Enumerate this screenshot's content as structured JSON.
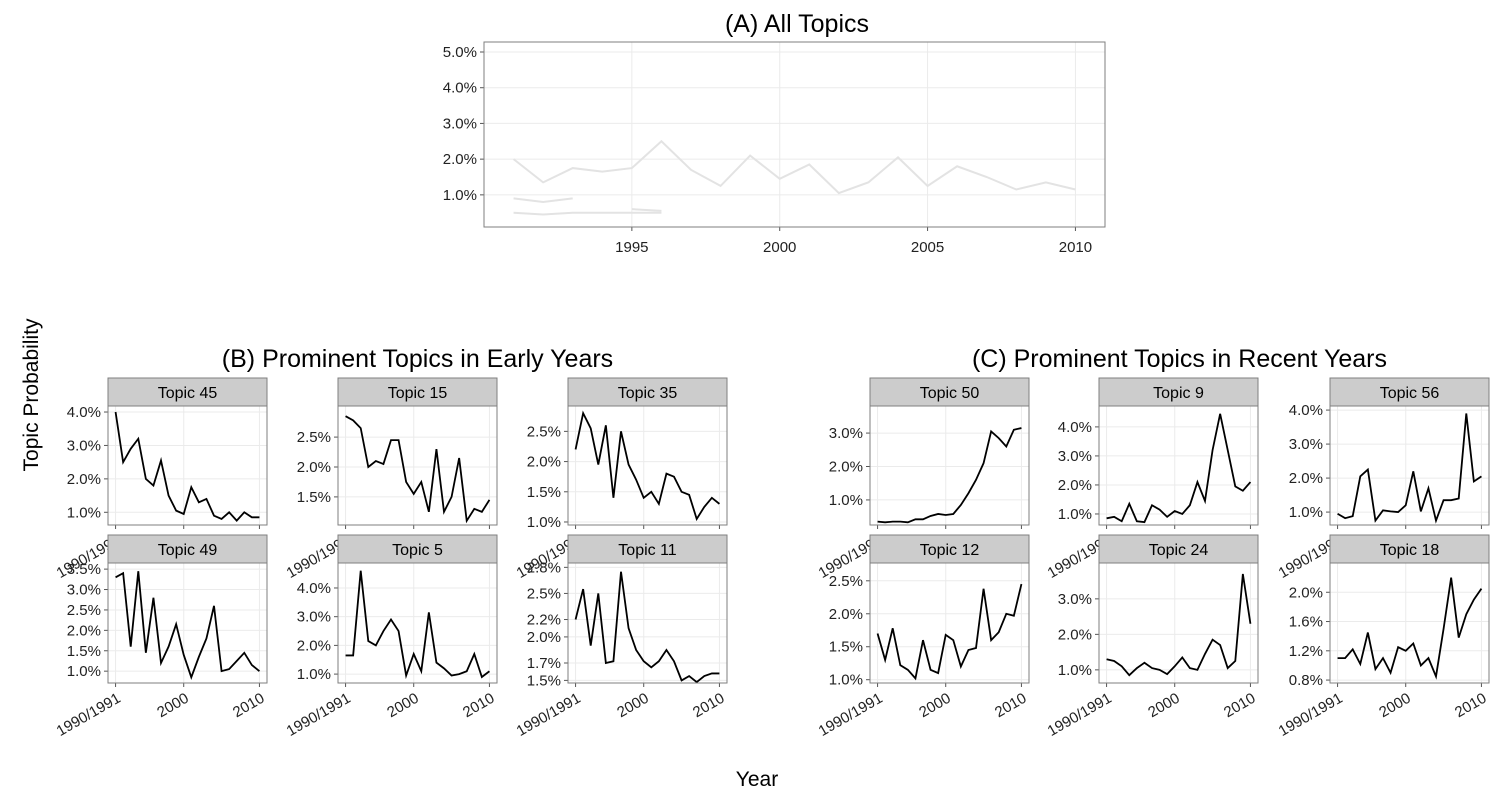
{
  "ylabel": "Topic Probability",
  "xlabel": "Year",
  "chart_data": [
    {
      "type": "line",
      "title": "(A) All Topics",
      "x": [
        1991,
        1992,
        1993,
        1994,
        1995,
        1996,
        1997,
        1998,
        1999,
        2000,
        2001,
        2002,
        2003,
        2004,
        2005,
        2006,
        2007,
        2008,
        2009,
        2010
      ],
      "xlim": [
        1990,
        2011
      ],
      "xticks": [
        1995,
        2000,
        2005,
        2010
      ],
      "ylim": [
        0.1,
        5.28
      ],
      "yticks": [
        {
          "value": 1,
          "label": "1.0%"
        },
        {
          "value": 2,
          "label": "2.0%"
        },
        {
          "value": 3,
          "label": "3.0%"
        },
        {
          "value": 4,
          "label": "4.0%"
        },
        {
          "value": 5,
          "label": "5.0%"
        }
      ],
      "grid": true,
      "series": [
        {
          "color": "#e3e3e3",
          "values": [
            2.0,
            1.35,
            1.75,
            1.65,
            1.75,
            2.5,
            1.7,
            1.25,
            2.1,
            1.45,
            1.85,
            1.05,
            1.35,
            2.05,
            1.25,
            1.8,
            1.5,
            1.15,
            1.35,
            1.15
          ]
        },
        {
          "color": "#e3e3e3",
          "values": [
            0.9,
            0.8,
            0.9,
            null,
            0.6,
            0.55,
            null,
            null,
            null,
            null,
            null,
            null,
            null,
            0.75,
            null,
            null,
            null,
            null,
            null,
            null
          ]
        },
        {
          "color": "#e3e3e3",
          "values": [
            0.5,
            0.45,
            0.5,
            0.5,
            0.5,
            0.5,
            null,
            null,
            null,
            null,
            null,
            null,
            null,
            null,
            null,
            null,
            null,
            null,
            null,
            null
          ]
        }
      ]
    },
    {
      "type": "line",
      "title": "(B) Prominent Topics in Early Years",
      "x": [
        1991,
        1992,
        1993,
        1994,
        1995,
        1996,
        1997,
        1998,
        1999,
        2000,
        2001,
        2002,
        2003,
        2004,
        2005,
        2006,
        2007,
        2008,
        2009,
        2010
      ],
      "xlim": [
        1990,
        2011
      ],
      "xticks": [
        {
          "value": 1991,
          "label": "1990/1991"
        },
        2000,
        2010
      ],
      "color": "#000000",
      "grid": true,
      "facets": [
        {
          "title": "Topic 45",
          "ylim": [
            0.62,
            4.18
          ],
          "yticks": [
            {
              "value": 1,
              "label": "1.0%"
            },
            {
              "value": 2,
              "label": "2.0%"
            },
            {
              "value": 3,
              "label": "3.0%"
            },
            {
              "value": 4,
              "label": "4.0%"
            }
          ],
          "values": [
            4.0,
            2.5,
            2.9,
            3.2,
            2.0,
            1.8,
            2.55,
            1.5,
            1.05,
            0.95,
            1.75,
            1.3,
            1.4,
            0.9,
            0.8,
            1.0,
            0.75,
            1.0,
            0.85,
            0.85
          ]
        },
        {
          "title": "Topic 15",
          "ylim": [
            1.03,
            3.02
          ],
          "yticks": [
            {
              "value": 1.5,
              "label": "1.5%"
            },
            {
              "value": 2,
              "label": "2.0%"
            },
            {
              "value": 2.5,
              "label": "2.5%"
            }
          ],
          "values": [
            2.85,
            2.78,
            2.65,
            2.0,
            2.1,
            2.05,
            2.45,
            2.45,
            1.75,
            1.55,
            1.75,
            1.25,
            2.3,
            1.25,
            1.5,
            2.15,
            1.1,
            1.3,
            1.25,
            1.45
          ]
        },
        {
          "title": "Topic 35",
          "ylim": [
            0.95,
            2.92
          ],
          "yticks": [
            {
              "value": 1,
              "label": "1.0%"
            },
            {
              "value": 1.5,
              "label": "1.5%"
            },
            {
              "value": 2,
              "label": "2.0%"
            },
            {
              "value": 2.5,
              "label": "2.5%"
            }
          ],
          "values": [
            2.2,
            2.8,
            2.55,
            1.95,
            2.6,
            1.4,
            2.5,
            1.95,
            1.7,
            1.4,
            1.5,
            1.3,
            1.8,
            1.75,
            1.5,
            1.45,
            1.05,
            1.25,
            1.4,
            1.3
          ]
        },
        {
          "title": "Topic 49",
          "ylim": [
            0.71,
            3.65
          ],
          "yticks": [
            {
              "value": 1,
              "label": "1.0%"
            },
            {
              "value": 1.5,
              "label": "1.5%"
            },
            {
              "value": 2,
              "label": "2.0%"
            },
            {
              "value": 2.5,
              "label": "2.5%"
            },
            {
              "value": 3,
              "label": "3.0%"
            },
            {
              "value": 3.5,
              "label": "3.5%"
            }
          ],
          "values": [
            3.3,
            3.4,
            1.6,
            3.45,
            1.45,
            2.8,
            1.2,
            1.6,
            2.15,
            1.4,
            0.85,
            1.35,
            1.8,
            2.6,
            1.0,
            1.05,
            1.25,
            1.45,
            1.15,
            1.0
          ]
        },
        {
          "title": "Topic 5",
          "ylim": [
            0.69,
            4.87
          ],
          "yticks": [
            {
              "value": 1,
              "label": "1.0%"
            },
            {
              "value": 2,
              "label": "2.0%"
            },
            {
              "value": 3,
              "label": "3.0%"
            },
            {
              "value": 4,
              "label": "4.0%"
            }
          ],
          "values": [
            1.65,
            1.65,
            4.6,
            2.15,
            2.0,
            2.5,
            2.9,
            2.5,
            0.95,
            1.7,
            1.1,
            3.15,
            1.4,
            1.2,
            0.95,
            1.0,
            1.1,
            1.7,
            0.9,
            1.1
          ]
        },
        {
          "title": "Topic 11",
          "ylim": [
            1.47,
            2.85
          ],
          "yticks": [
            {
              "value": 1.5,
              "label": "1.5%"
            },
            {
              "value": 1.7,
              "label": "1.7%"
            },
            {
              "value": 2,
              "label": "2.0%"
            },
            {
              "value": 2.2,
              "label": "2.2%"
            },
            {
              "value": 2.5,
              "label": "2.5%"
            },
            {
              "value": 2.8,
              "label": "2.8%"
            }
          ],
          "values": [
            2.2,
            2.55,
            1.9,
            2.5,
            1.7,
            1.72,
            2.75,
            2.1,
            1.85,
            1.72,
            1.65,
            1.72,
            1.85,
            1.72,
            1.5,
            1.55,
            1.48,
            1.55,
            1.58,
            1.58
          ]
        }
      ]
    },
    {
      "type": "line",
      "title": "(C) Prominent Topics in Recent Years",
      "x": [
        1991,
        1992,
        1993,
        1994,
        1995,
        1996,
        1997,
        1998,
        1999,
        2000,
        2001,
        2002,
        2003,
        2004,
        2005,
        2006,
        2007,
        2008,
        2009,
        2010
      ],
      "xlim": [
        1990,
        2011
      ],
      "xticks": [
        {
          "value": 1991,
          "label": "1990/1991"
        },
        2000,
        2010
      ],
      "color": "#000000",
      "grid": true,
      "facets": [
        {
          "title": "Topic 50",
          "ylim": [
            0.25,
            3.81
          ],
          "yticks": [
            {
              "value": 1,
              "label": "1.0%"
            },
            {
              "value": 2,
              "label": "2.0%"
            },
            {
              "value": 3,
              "label": "3.0%"
            }
          ],
          "values": [
            0.35,
            0.33,
            0.35,
            0.35,
            0.33,
            0.42,
            0.42,
            0.52,
            0.58,
            0.55,
            0.58,
            0.85,
            1.2,
            1.6,
            2.1,
            3.05,
            2.85,
            2.6,
            3.1,
            3.15
          ]
        },
        {
          "title": "Topic 9",
          "ylim": [
            0.62,
            4.72
          ],
          "yticks": [
            {
              "value": 1,
              "label": "1.0%"
            },
            {
              "value": 2,
              "label": "2.0%"
            },
            {
              "value": 3,
              "label": "3.0%"
            },
            {
              "value": 4,
              "label": "4.0%"
            }
          ],
          "values": [
            0.85,
            0.9,
            0.75,
            1.35,
            0.75,
            0.72,
            1.3,
            1.15,
            0.9,
            1.1,
            1.0,
            1.3,
            2.1,
            1.45,
            3.2,
            4.45,
            3.2,
            1.95,
            1.8,
            2.1
          ]
        },
        {
          "title": "Topic 56",
          "ylim": [
            0.62,
            4.12
          ],
          "yticks": [
            {
              "value": 1,
              "label": "1.0%"
            },
            {
              "value": 2,
              "label": "2.0%"
            },
            {
              "value": 3,
              "label": "3.0%"
            },
            {
              "value": 4,
              "label": "4.0%"
            }
          ],
          "values": [
            0.95,
            0.82,
            0.88,
            2.05,
            2.25,
            0.75,
            1.05,
            1.02,
            1.0,
            1.2,
            2.2,
            1.02,
            1.7,
            0.75,
            1.35,
            1.35,
            1.4,
            3.9,
            1.9,
            2.05
          ]
        },
        {
          "title": "Topic 12",
          "ylim": [
            0.95,
            2.77
          ],
          "yticks": [
            {
              "value": 1,
              "label": "1.0%"
            },
            {
              "value": 1.5,
              "label": "1.5%"
            },
            {
              "value": 2,
              "label": "2.0%"
            },
            {
              "value": 2.5,
              "label": "2.5%"
            }
          ],
          "values": [
            1.7,
            1.3,
            1.78,
            1.22,
            1.15,
            1.02,
            1.6,
            1.15,
            1.1,
            1.68,
            1.6,
            1.2,
            1.45,
            1.48,
            2.38,
            1.6,
            1.72,
            2.0,
            1.97,
            2.45
          ]
        },
        {
          "title": "Topic 24",
          "ylim": [
            0.63,
            4.01
          ],
          "yticks": [
            {
              "value": 1,
              "label": "1.0%"
            },
            {
              "value": 2,
              "label": "2.0%"
            },
            {
              "value": 3,
              "label": "3.0%"
            }
          ],
          "values": [
            1.3,
            1.25,
            1.1,
            0.85,
            1.05,
            1.2,
            1.05,
            1.0,
            0.88,
            1.1,
            1.35,
            1.05,
            1.0,
            1.45,
            1.85,
            1.7,
            1.05,
            1.25,
            3.7,
            2.3
          ]
        },
        {
          "title": "Topic 18",
          "ylim": [
            0.76,
            2.4
          ],
          "yticks": [
            {
              "value": 0.8,
              "label": "0.8%"
            },
            {
              "value": 1.2,
              "label": "1.2%"
            },
            {
              "value": 1.6,
              "label": "1.6%"
            },
            {
              "value": 2,
              "label": "2.0%"
            }
          ],
          "values": [
            1.1,
            1.1,
            1.22,
            1.02,
            1.45,
            0.95,
            1.1,
            0.9,
            1.25,
            1.2,
            1.3,
            1.0,
            1.1,
            0.85,
            1.5,
            2.2,
            1.38,
            1.7,
            1.9,
            2.05
          ]
        }
      ]
    }
  ]
}
